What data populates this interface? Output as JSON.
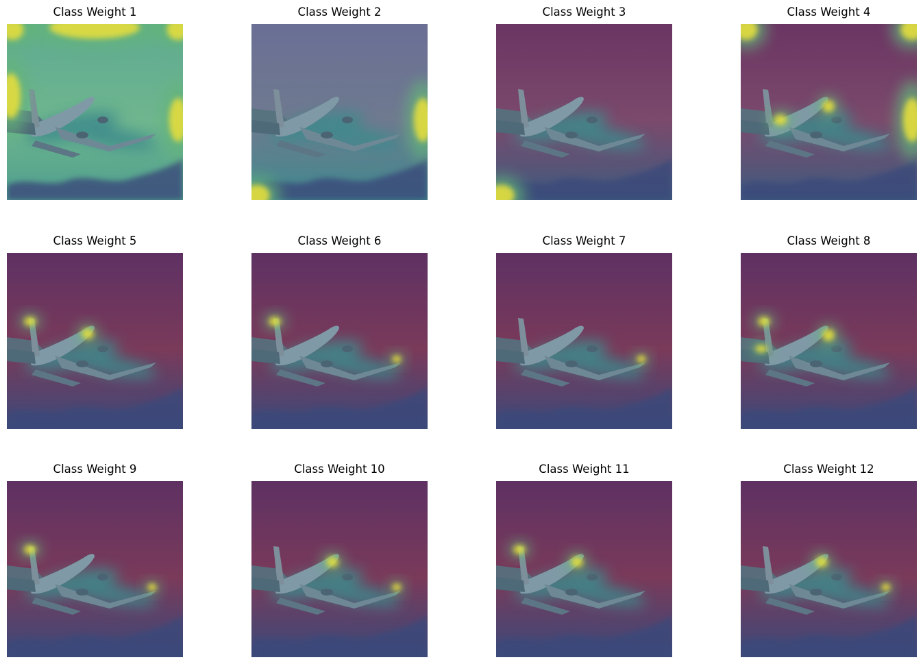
{
  "figure": {
    "panels": [
      {
        "title": "Class Weight 1",
        "hotspots": [
          "border-top",
          "border-left",
          "border-right",
          "corner-top-left",
          "corner-top-right"
        ],
        "variant": "bright-border"
      },
      {
        "title": "Class Weight 2",
        "hotspots": [
          "corner-bottom-left",
          "border-right"
        ],
        "variant": "teal-mix"
      },
      {
        "title": "Class Weight 3",
        "hotspots": [
          "corner-bottom-left"
        ],
        "variant": "purple-mix"
      },
      {
        "title": "Class Weight 4",
        "hotspots": [
          "corner-top-left",
          "corner-top-right",
          "border-right",
          "fuselage",
          "wing-root"
        ],
        "variant": "purple-mix"
      },
      {
        "title": "Class Weight 5",
        "hotspots": [
          "tail",
          "cockpit"
        ],
        "variant": "purple"
      },
      {
        "title": "Class Weight 6",
        "hotspots": [
          "tail",
          "wingtip"
        ],
        "variant": "purple"
      },
      {
        "title": "Class Weight 7",
        "hotspots": [
          "wingtip"
        ],
        "variant": "purple"
      },
      {
        "title": "Class Weight 8",
        "hotspots": [
          "tail",
          "fuselage",
          "engine"
        ],
        "variant": "purple"
      },
      {
        "title": "Class Weight 9",
        "hotspots": [
          "tail",
          "wingtip"
        ],
        "variant": "purple"
      },
      {
        "title": "Class Weight 10",
        "hotspots": [
          "cockpit",
          "wingtip"
        ],
        "variant": "purple"
      },
      {
        "title": "Class Weight 11",
        "hotspots": [
          "tail",
          "cockpit"
        ],
        "variant": "purple"
      },
      {
        "title": "Class Weight 12",
        "hotspots": [
          "cockpit",
          "wingtip"
        ],
        "variant": "purple"
      }
    ],
    "colors": {
      "purple": "#6b2d5c",
      "teal": "#3e8a8c",
      "green": "#64b47a",
      "yellow": "#e4dd3c",
      "navy": "#3b4a7a"
    }
  }
}
